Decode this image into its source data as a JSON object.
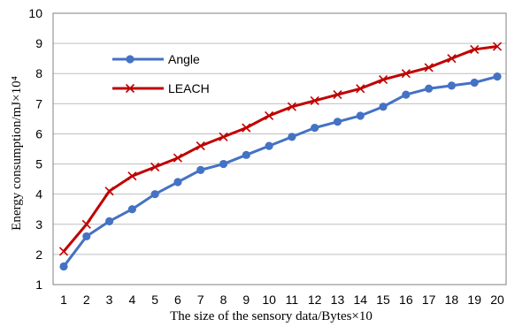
{
  "chart_data": {
    "type": "line",
    "xlabel": "The size of the sensory data/Bytes×10",
    "ylabel": "Energy consumption/mJ×10⁴",
    "x": [
      1,
      2,
      3,
      4,
      5,
      6,
      7,
      8,
      9,
      10,
      11,
      12,
      13,
      14,
      15,
      16,
      17,
      18,
      19,
      20
    ],
    "xlim": [
      1,
      20
    ],
    "ylim": [
      1,
      10
    ],
    "yticks": [
      1,
      2,
      3,
      4,
      5,
      6,
      7,
      8,
      9,
      10
    ],
    "grid": "horizontal",
    "legend": "top-left",
    "series": [
      {
        "name": "Angle",
        "color": "#4472C4",
        "marker": "circle",
        "values": [
          1.6,
          2.6,
          3.1,
          3.5,
          4.0,
          4.4,
          4.8,
          5.0,
          5.3,
          5.6,
          5.9,
          6.2,
          6.4,
          6.6,
          6.9,
          7.3,
          7.5,
          7.6,
          7.7,
          7.9
        ]
      },
      {
        "name": "LEACH",
        "color": "#C00000",
        "marker": "x",
        "values": [
          2.1,
          3.0,
          4.1,
          4.6,
          4.9,
          5.2,
          5.6,
          5.9,
          6.2,
          6.6,
          6.9,
          7.1,
          7.3,
          7.5,
          7.8,
          8.0,
          8.2,
          8.5,
          8.8,
          8.9
        ]
      }
    ]
  }
}
